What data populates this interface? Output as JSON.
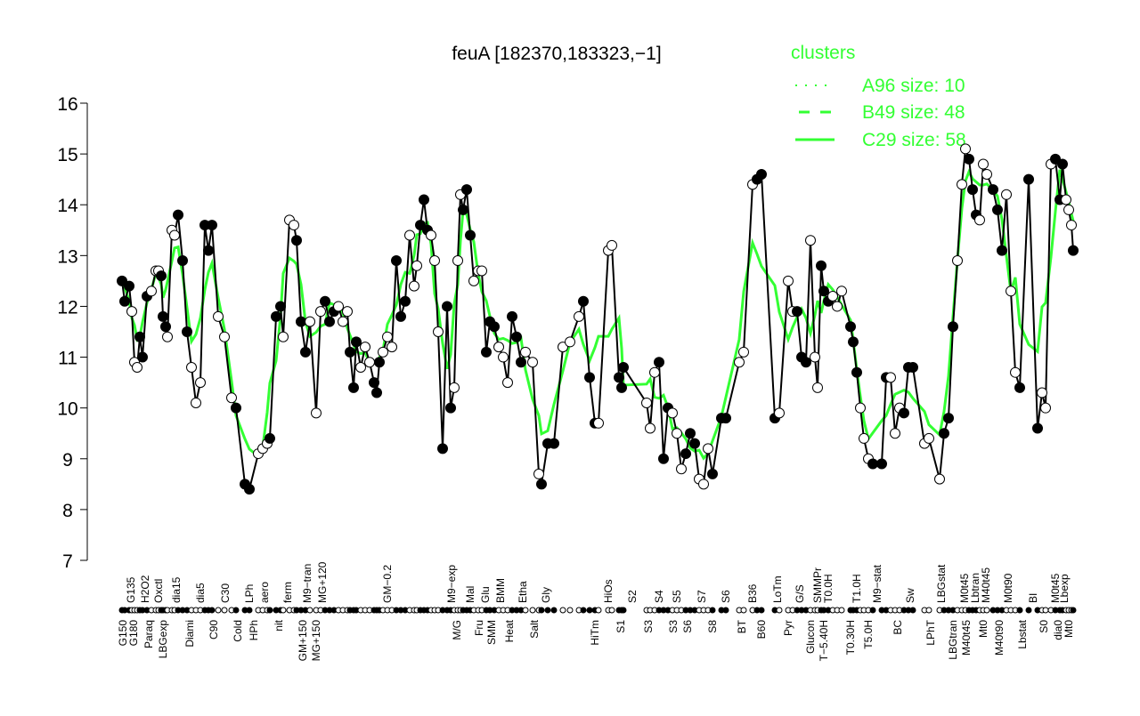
{
  "chart_data": {
    "type": "line",
    "title": "feuA [182370,183323,−1]",
    "xlabel": "",
    "ylabel": "",
    "ylim": [
      7,
      16
    ],
    "yticks": [
      7,
      8,
      9,
      10,
      11,
      12,
      13,
      14,
      15,
      16
    ],
    "xlim": [
      0,
      1117
    ],
    "legend": {
      "title": "clusters",
      "placement": "top-right",
      "entries": [
        {
          "label": "A96 size: 10",
          "style": "dotted"
        },
        {
          "label": "B49 size: 48",
          "style": "dashed"
        },
        {
          "label": "C29 size: 58",
          "style": "solid"
        }
      ]
    },
    "colors": {
      "line": "#000000",
      "cluster": "#33ff33",
      "axis": "#000000"
    },
    "points": [
      [
        39,
        12.5
      ],
      [
        42,
        12.1
      ],
      [
        47,
        12.4
      ],
      [
        50,
        11.9
      ],
      [
        53,
        10.9
      ],
      [
        56,
        10.8
      ],
      [
        59,
        11.4
      ],
      [
        62,
        11.0
      ],
      [
        67,
        12.2
      ],
      [
        72,
        12.3
      ],
      [
        77,
        12.7
      ],
      [
        80,
        12.7
      ],
      [
        83,
        12.6
      ],
      [
        85,
        11.8
      ],
      [
        88,
        11.6
      ],
      [
        90,
        11.4
      ],
      [
        95,
        13.5
      ],
      [
        98,
        13.4
      ],
      [
        102,
        13.8
      ],
      [
        107,
        12.9
      ],
      [
        112,
        11.5
      ],
      [
        117,
        10.8
      ],
      [
        122,
        10.1
      ],
      [
        127,
        10.5
      ],
      [
        132,
        13.6
      ],
      [
        136,
        13.1
      ],
      [
        140,
        13.6
      ],
      [
        147,
        11.8
      ],
      [
        154,
        11.4
      ],
      [
        162,
        10.2
      ],
      [
        167,
        10.0
      ],
      [
        177,
        8.5
      ],
      [
        182,
        8.4
      ],
      [
        192,
        9.1
      ],
      [
        197,
        9.2
      ],
      [
        202,
        9.3
      ],
      [
        205,
        9.4
      ],
      [
        212,
        11.8
      ],
      [
        217,
        12.0
      ],
      [
        220,
        11.4
      ],
      [
        227,
        13.7
      ],
      [
        232,
        13.6
      ],
      [
        235,
        13.3
      ],
      [
        240,
        11.7
      ],
      [
        245,
        11.1
      ],
      [
        250,
        11.7
      ],
      [
        257,
        9.9
      ],
      [
        262,
        11.9
      ],
      [
        267,
        12.1
      ],
      [
        272,
        11.7
      ],
      [
        277,
        11.9
      ],
      [
        282,
        12.0
      ],
      [
        287,
        11.7
      ],
      [
        292,
        11.9
      ],
      [
        295,
        11.1
      ],
      [
        299,
        10.4
      ],
      [
        302,
        11.3
      ],
      [
        307,
        10.8
      ],
      [
        312,
        11.2
      ],
      [
        317,
        10.9
      ],
      [
        322,
        10.5
      ],
      [
        325,
        10.3
      ],
      [
        328,
        10.9
      ],
      [
        332,
        11.1
      ],
      [
        337,
        11.4
      ],
      [
        342,
        11.2
      ],
      [
        347,
        12.9
      ],
      [
        352,
        11.8
      ],
      [
        357,
        12.1
      ],
      [
        362,
        13.4
      ],
      [
        367,
        12.4
      ],
      [
        370,
        12.8
      ],
      [
        374,
        13.6
      ],
      [
        378,
        14.1
      ],
      [
        382,
        13.5
      ],
      [
        386,
        13.4
      ],
      [
        390,
        12.9
      ],
      [
        394,
        11.5
      ],
      [
        399,
        9.2
      ],
      [
        404,
        12.0
      ],
      [
        408,
        10.0
      ],
      [
        412,
        10.4
      ],
      [
        416,
        12.9
      ],
      [
        419,
        14.2
      ],
      [
        422,
        13.9
      ],
      [
        426,
        14.3
      ],
      [
        430,
        13.4
      ],
      [
        434,
        12.5
      ],
      [
        439,
        12.7
      ],
      [
        443,
        12.7
      ],
      [
        448,
        11.1
      ],
      [
        452,
        11.7
      ],
      [
        457,
        11.6
      ],
      [
        462,
        11.2
      ],
      [
        467,
        11.0
      ],
      [
        472,
        10.5
      ],
      [
        477,
        11.8
      ],
      [
        482,
        11.4
      ],
      [
        487,
        10.9
      ],
      [
        492,
        11.1
      ],
      [
        500,
        10.9
      ],
      [
        507,
        8.7
      ],
      [
        510,
        8.5
      ],
      [
        517,
        9.3
      ],
      [
        524,
        9.3
      ],
      [
        534,
        11.2
      ],
      [
        542,
        11.3
      ],
      [
        552,
        11.8
      ],
      [
        557,
        12.1
      ],
      [
        564,
        10.6
      ],
      [
        570,
        9.7
      ],
      [
        574,
        9.7
      ],
      [
        585,
        13.1
      ],
      [
        589,
        13.2
      ],
      [
        597,
        10.6
      ],
      [
        600,
        10.4
      ],
      [
        602,
        10.8
      ],
      [
        628,
        10.1
      ],
      [
        632,
        9.6
      ],
      [
        637,
        10.7
      ],
      [
        642,
        10.9
      ],
      [
        647,
        9.0
      ],
      [
        652,
        10.0
      ],
      [
        657,
        9.9
      ],
      [
        662,
        9.5
      ],
      [
        667,
        8.8
      ],
      [
        672,
        9.1
      ],
      [
        677,
        9.5
      ],
      [
        682,
        9.3
      ],
      [
        687,
        8.6
      ],
      [
        692,
        8.5
      ],
      [
        697,
        9.2
      ],
      [
        702,
        8.7
      ],
      [
        712,
        9.8
      ],
      [
        717,
        9.8
      ],
      [
        732,
        10.9
      ],
      [
        737,
        11.1
      ],
      [
        747,
        14.4
      ],
      [
        752,
        14.5
      ],
      [
        757,
        14.6
      ],
      [
        772,
        9.8
      ],
      [
        777,
        9.9
      ],
      [
        787,
        12.5
      ],
      [
        792,
        11.9
      ],
      [
        797,
        11.9
      ],
      [
        802,
        11.0
      ],
      [
        807,
        10.9
      ],
      [
        812,
        13.3
      ],
      [
        817,
        11.0
      ],
      [
        820,
        10.4
      ],
      [
        824,
        12.8
      ],
      [
        827,
        12.3
      ],
      [
        832,
        12.1
      ],
      [
        837,
        12.2
      ],
      [
        842,
        12.0
      ],
      [
        847,
        12.3
      ],
      [
        857,
        11.6
      ],
      [
        860,
        11.3
      ],
      [
        864,
        10.7
      ],
      [
        868,
        10.0
      ],
      [
        872,
        9.4
      ],
      [
        877,
        9.0
      ],
      [
        882,
        8.9
      ],
      [
        892,
        8.9
      ],
      [
        897,
        10.6
      ],
      [
        902,
        10.6
      ],
      [
        907,
        9.5
      ],
      [
        912,
        10.0
      ],
      [
        917,
        9.9
      ],
      [
        922,
        10.8
      ],
      [
        927,
        10.8
      ],
      [
        940,
        9.3
      ],
      [
        945,
        9.4
      ],
      [
        957,
        8.6
      ],
      [
        962,
        9.5
      ],
      [
        967,
        9.8
      ],
      [
        972,
        11.6
      ],
      [
        977,
        12.9
      ],
      [
        982,
        14.4
      ],
      [
        986,
        15.1
      ],
      [
        990,
        14.9
      ],
      [
        994,
        14.3
      ],
      [
        998,
        13.8
      ],
      [
        1002,
        13.7
      ],
      [
        1006,
        14.8
      ],
      [
        1010,
        14.6
      ],
      [
        1017,
        14.3
      ],
      [
        1022,
        13.9
      ],
      [
        1027,
        13.1
      ],
      [
        1032,
        14.2
      ],
      [
        1037,
        12.3
      ],
      [
        1042,
        10.7
      ],
      [
        1047,
        10.4
      ],
      [
        1057,
        14.5
      ],
      [
        1067,
        9.6
      ],
      [
        1072,
        10.3
      ],
      [
        1076,
        10.0
      ],
      [
        1082,
        14.8
      ],
      [
        1087,
        14.9
      ],
      [
        1092,
        14.1
      ],
      [
        1095,
        14.8
      ],
      [
        1099,
        14.1
      ],
      [
        1102,
        13.9
      ],
      [
        1105,
        13.6
      ],
      [
        1107,
        13.1
      ]
    ],
    "xtick_labels_top": [
      {
        "x": 49,
        "label": "G135"
      },
      {
        "x": 65,
        "label": "H2O2"
      },
      {
        "x": 80,
        "label": "Oxctl"
      },
      {
        "x": 100,
        "label": "dia15"
      },
      {
        "x": 127,
        "label": "dia5"
      },
      {
        "x": 155,
        "label": "C30"
      },
      {
        "x": 182,
        "label": "LPh"
      },
      {
        "x": 199,
        "label": "aero"
      },
      {
        "x": 225,
        "label": "ferm"
      },
      {
        "x": 247,
        "label": "M9−tran"
      },
      {
        "x": 264,
        "label": "MG+120"
      },
      {
        "x": 337,
        "label": "GM−0.2"
      },
      {
        "x": 409,
        "label": "M9−exp"
      },
      {
        "x": 430,
        "label": "Mal"
      },
      {
        "x": 447,
        "label": "Glu"
      },
      {
        "x": 464,
        "label": "BMM"
      },
      {
        "x": 489,
        "label": "Etha"
      },
      {
        "x": 515,
        "label": "Gly"
      },
      {
        "x": 585,
        "label": "HiOs"
      },
      {
        "x": 612,
        "label": "S2"
      },
      {
        "x": 642,
        "label": "S4"
      },
      {
        "x": 662,
        "label": "S5"
      },
      {
        "x": 690,
        "label": "S7"
      },
      {
        "x": 717,
        "label": "S6"
      },
      {
        "x": 747,
        "label": "B36"
      },
      {
        "x": 775,
        "label": "LoTm"
      },
      {
        "x": 800,
        "label": "G/S"
      },
      {
        "x": 820,
        "label": "SMMPr"
      },
      {
        "x": 832,
        "label": "T0.0H"
      },
      {
        "x": 864,
        "label": "T1.0H"
      },
      {
        "x": 887,
        "label": "M9−stat"
      },
      {
        "x": 924,
        "label": "Sw"
      },
      {
        "x": 959,
        "label": "LBGstat"
      },
      {
        "x": 985,
        "label": "M0t45"
      },
      {
        "x": 997,
        "label": "Lbtran"
      },
      {
        "x": 1009,
        "label": "M40t45"
      },
      {
        "x": 1034,
        "label": "M0t90"
      },
      {
        "x": 1062,
        "label": "BI"
      },
      {
        "x": 1087,
        "label": "M0t45"
      },
      {
        "x": 1097,
        "label": "Lbexp"
      }
    ],
    "xtick_labels_bottom": [
      {
        "x": 40,
        "label": "G150"
      },
      {
        "x": 52,
        "label": "G180"
      },
      {
        "x": 69,
        "label": "Paraq"
      },
      {
        "x": 85,
        "label": "LBGexp"
      },
      {
        "x": 115,
        "label": "Diami"
      },
      {
        "x": 142,
        "label": "C90"
      },
      {
        "x": 169,
        "label": "Cold"
      },
      {
        "x": 187,
        "label": "HPh"
      },
      {
        "x": 215,
        "label": "nit"
      },
      {
        "x": 242,
        "label": "GM+150"
      },
      {
        "x": 257,
        "label": "MG+150"
      },
      {
        "x": 415,
        "label": "M/G"
      },
      {
        "x": 440,
        "label": "Fru"
      },
      {
        "x": 454,
        "label": "SMM"
      },
      {
        "x": 474,
        "label": "Heat"
      },
      {
        "x": 502,
        "label": "Salt"
      },
      {
        "x": 570,
        "label": "HiTm"
      },
      {
        "x": 599,
        "label": "S1"
      },
      {
        "x": 630,
        "label": "S3"
      },
      {
        "x": 658,
        "label": "S3"
      },
      {
        "x": 674,
        "label": "S6"
      },
      {
        "x": 702,
        "label": "S8"
      },
      {
        "x": 735,
        "label": "BT"
      },
      {
        "x": 757,
        "label": "B60"
      },
      {
        "x": 787,
        "label": "Pyr"
      },
      {
        "x": 812,
        "label": "Glucon"
      },
      {
        "x": 827,
        "label": "T−5.40H"
      },
      {
        "x": 857,
        "label": "T0.30H"
      },
      {
        "x": 877,
        "label": "T5.0H"
      },
      {
        "x": 910,
        "label": "BC"
      },
      {
        "x": 947,
        "label": "LPhT"
      },
      {
        "x": 972,
        "label": "LBGtran"
      },
      {
        "x": 987,
        "label": "M40t45"
      },
      {
        "x": 1006,
        "label": "Mt0"
      },
      {
        "x": 1024,
        "label": "M40t90"
      },
      {
        "x": 1050,
        "label": "Lbstat"
      },
      {
        "x": 1074,
        "label": "S0"
      },
      {
        "x": 1090,
        "label": "dia0"
      },
      {
        "x": 1102,
        "label": "Mt0"
      }
    ]
  }
}
